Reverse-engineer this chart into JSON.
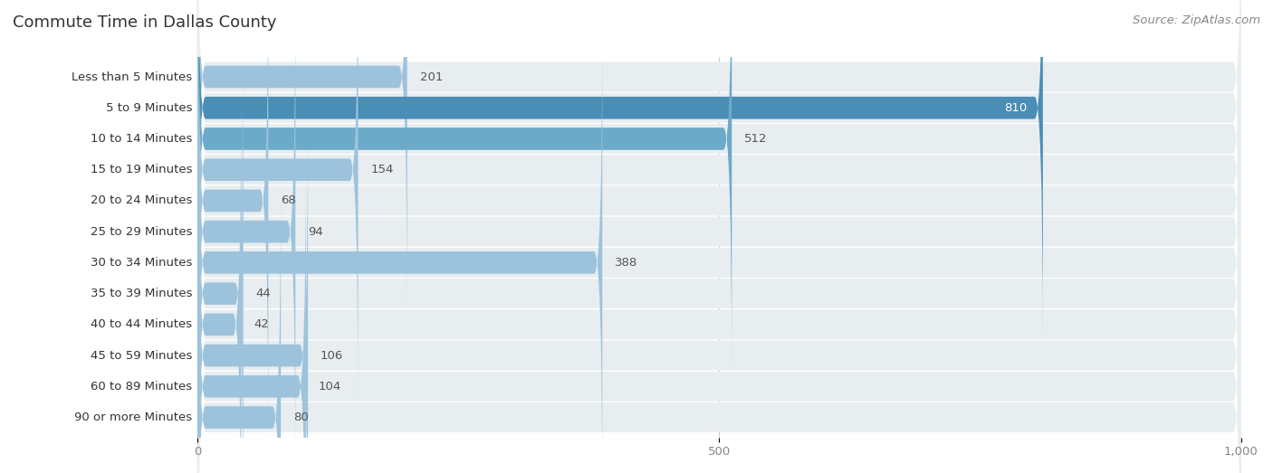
{
  "title": "Commute Time in Dallas County",
  "source": "Source: ZipAtlas.com",
  "categories": [
    "Less than 5 Minutes",
    "5 to 9 Minutes",
    "10 to 14 Minutes",
    "15 to 19 Minutes",
    "20 to 24 Minutes",
    "25 to 29 Minutes",
    "30 to 34 Minutes",
    "35 to 39 Minutes",
    "40 to 44 Minutes",
    "45 to 59 Minutes",
    "60 to 89 Minutes",
    "90 or more Minutes"
  ],
  "values": [
    201,
    810,
    512,
    154,
    68,
    94,
    388,
    44,
    42,
    106,
    104,
    80
  ],
  "bar_color_normal": "#9DC3DC",
  "bar_color_highlight": "#4A8DB5",
  "highlight_indices": [
    1,
    2,
    6
  ],
  "xlim_max": 1000,
  "xticks": [
    0,
    500,
    1000
  ],
  "title_fontsize": 13,
  "label_fontsize": 9.5,
  "value_fontsize": 9.5,
  "source_fontsize": 9.5,
  "bg_color": "#ffffff",
  "bar_bg_color": "#e8edf0",
  "row_bg_even": "#f0f4f7",
  "row_bg_odd": "#ffffff",
  "grid_color": "#c8d0d8",
  "title_color": "#333333",
  "label_color": "#333333",
  "value_color_inside": "#ffffff",
  "value_color_outside": "#555555",
  "tick_color": "#888888"
}
